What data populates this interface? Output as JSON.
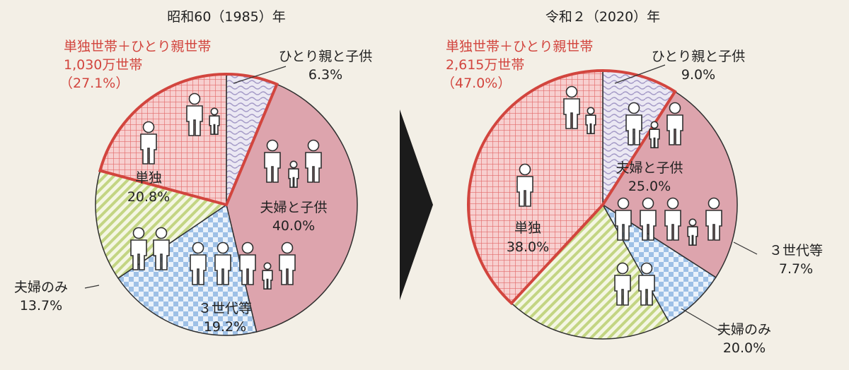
{
  "colors": {
    "background": "#f3efe6",
    "highlight_red": "#d2453e",
    "slice_single": "#f0a7a7",
    "slice_single_parent": "#c9c3dd",
    "slice_couple_children": "#dda4ad",
    "slice_three_generation": "#a9c8e8",
    "slice_couple_only": "#c9d98c",
    "arrow": "#1b1b1b"
  },
  "chart_data": [
    {
      "type": "pie",
      "title": "昭和60（1985）年",
      "slices": [
        {
          "name": "ひとり親と子供",
          "value": 6.3,
          "label": "6.3%",
          "pattern": "wave"
        },
        {
          "name": "夫婦と子供",
          "value": 40.0,
          "label": "40.0%",
          "pattern": "solid"
        },
        {
          "name": "３世代等",
          "value": 19.2,
          "label": "19.2%",
          "pattern": "checker"
        },
        {
          "name": "夫婦のみ",
          "value": 13.7,
          "label": "13.7%",
          "pattern": "diagonal"
        },
        {
          "name": "単独",
          "value": 20.8,
          "label": "20.8%",
          "pattern": "grid"
        }
      ],
      "highlight": {
        "title": "単独世帯＋ひとり親世帯",
        "amount": "1,030万世帯",
        "percent": "（27.1%）",
        "value": 27.1
      }
    },
    {
      "type": "pie",
      "title": "令和２（2020）年",
      "slices": [
        {
          "name": "ひとり親と子供",
          "value": 9.0,
          "label": "9.0%",
          "pattern": "wave"
        },
        {
          "name": "夫婦と子供",
          "value": 25.0,
          "label": "25.0%",
          "pattern": "solid"
        },
        {
          "name": "３世代等",
          "value": 7.7,
          "label": "7.7%",
          "pattern": "checker"
        },
        {
          "name": "夫婦のみ",
          "value": 20.0,
          "label": "20.0%",
          "pattern": "diagonal"
        },
        {
          "name": "単独",
          "value": 38.0,
          "label": "38.0%",
          "pattern": "grid"
        }
      ],
      "highlight": {
        "title": "単独世帯＋ひとり親世帯",
        "amount": "2,615万世帯",
        "percent": "（47.0%）",
        "value": 47.0
      }
    }
  ]
}
